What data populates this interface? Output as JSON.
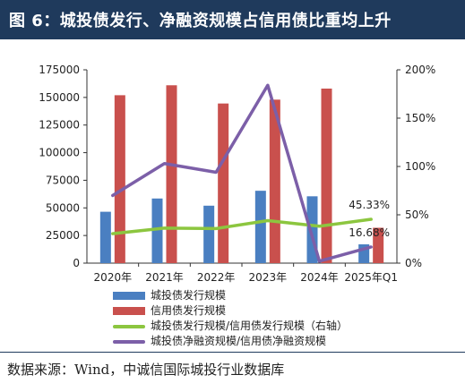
{
  "header": {
    "title": "图 6：城投债发行、净融资规模占信用债比重均上升"
  },
  "source": {
    "text": "数据来源：Wind，中诚信国际城投行业数据库"
  },
  "colors": {
    "header_bg": "#1f3a5c",
    "series_1": "#4a7fc1",
    "series_2": "#c9504d",
    "series_3": "#8cc63f",
    "series_4": "#7c5fa8"
  },
  "chart_data": {
    "type": "bar",
    "categories": [
      "2020年",
      "2021年",
      "2022年",
      "2023年",
      "2024年",
      "2025年Q1"
    ],
    "y_left": {
      "ticks": [
        "0",
        "25000",
        "50000",
        "75000",
        "100000",
        "125000",
        "150000",
        "175000"
      ],
      "ylim": [
        0,
        175000
      ]
    },
    "y_right": {
      "ticks": [
        "0%",
        "50%",
        "100%",
        "150%",
        "200%"
      ],
      "ylim": [
        0,
        200
      ]
    },
    "grid": false,
    "legend_position": "bottom",
    "series": [
      {
        "name": "城投债发行规模",
        "type": "bar",
        "axis": "left",
        "values": [
          46500,
          58500,
          52000,
          65500,
          60500,
          17000
        ]
      },
      {
        "name": "信用债发行规模",
        "type": "bar",
        "axis": "left",
        "values": [
          152000,
          161000,
          144500,
          148000,
          158000,
          32000
        ]
      },
      {
        "name": "城投债发行规模/信用债发行规模（右轴）",
        "type": "line",
        "axis": "right",
        "values": [
          30.5,
          36.2,
          35.8,
          44.0,
          38.2,
          45.33
        ]
      },
      {
        "name": "城投债净融资规模/信用债净融资规模",
        "type": "line",
        "axis": "right",
        "values": [
          70,
          103,
          94,
          184,
          2,
          16.68
        ]
      }
    ],
    "annotations": [
      {
        "text": "45.33%",
        "series": 2,
        "index": 5
      },
      {
        "text": "16.68%",
        "series": 3,
        "index": 5
      }
    ]
  }
}
